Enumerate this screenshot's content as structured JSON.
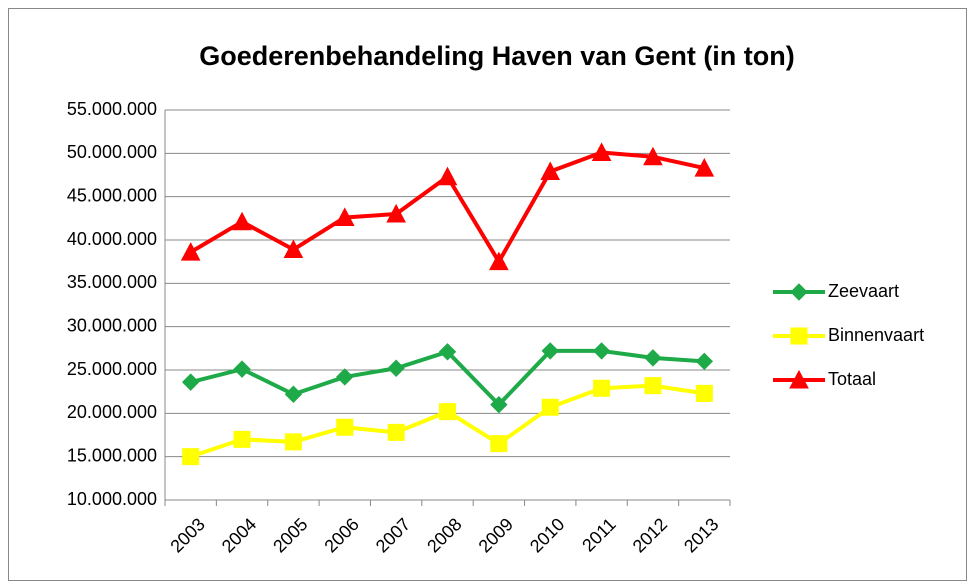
{
  "chart_data": {
    "type": "line",
    "title": "Goederenbehandeling Haven van Gent (in ton)",
    "categories": [
      "2003",
      "2004",
      "2005",
      "2006",
      "2007",
      "2008",
      "2009",
      "2010",
      "2011",
      "2012",
      "2013"
    ],
    "series": [
      {
        "name": "Zeevaart",
        "color": "#1faa4a",
        "marker": "diamond",
        "values": [
          23600000,
          25100000,
          22200000,
          24200000,
          25200000,
          27100000,
          21000000,
          27200000,
          27200000,
          26400000,
          26000000
        ]
      },
      {
        "name": "Binnenvaart",
        "color": "#ffff00",
        "marker": "square",
        "values": [
          15000000,
          17000000,
          16700000,
          18400000,
          17800000,
          20200000,
          16500000,
          20700000,
          22900000,
          23200000,
          22300000
        ]
      },
      {
        "name": "Totaal",
        "color": "#ff0000",
        "marker": "triangle",
        "values": [
          38600000,
          42100000,
          38900000,
          42600000,
          43000000,
          47300000,
          37500000,
          47900000,
          50100000,
          49600000,
          48300000
        ]
      }
    ],
    "ylim": [
      10000000,
      55000000
    ],
    "yticks": [
      {
        "value": 10000000,
        "label": "10.000.000"
      },
      {
        "value": 15000000,
        "label": "15.000.000"
      },
      {
        "value": 20000000,
        "label": "20.000.000"
      },
      {
        "value": 25000000,
        "label": "25.000.000"
      },
      {
        "value": 30000000,
        "label": "30.000.000"
      },
      {
        "value": 35000000,
        "label": "35.000.000"
      },
      {
        "value": 40000000,
        "label": "40.000.000"
      },
      {
        "value": 45000000,
        "label": "45.000.000"
      },
      {
        "value": 50000000,
        "label": "50.000.000"
      },
      {
        "value": 55000000,
        "label": "55.000.000"
      }
    ],
    "grid": true,
    "legend": "right"
  }
}
